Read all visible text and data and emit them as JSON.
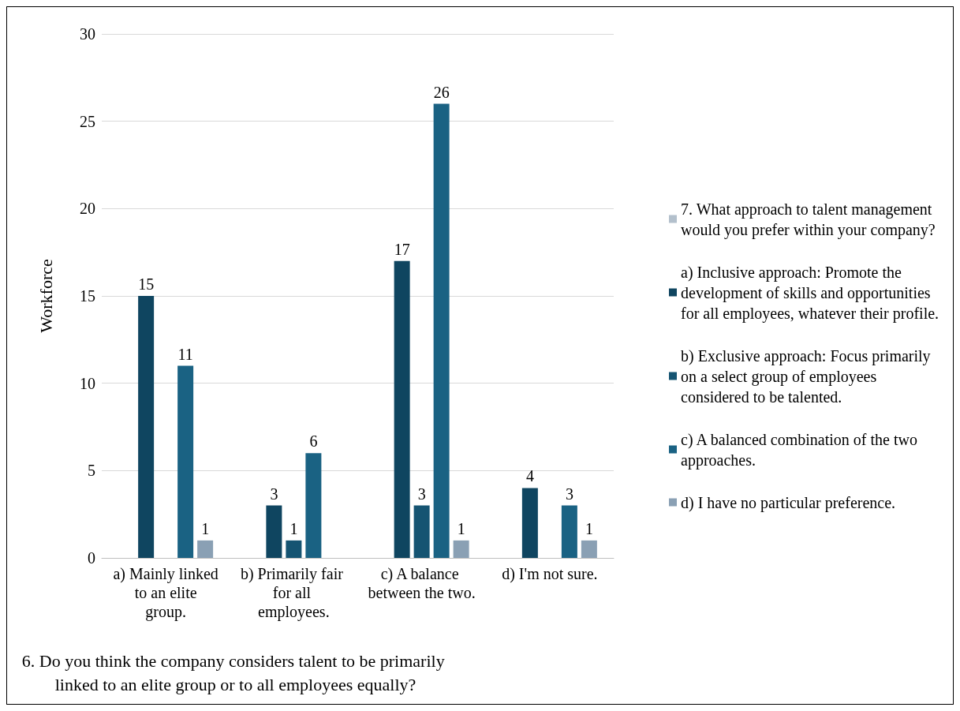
{
  "chart_data": {
    "type": "bar",
    "xlabel": "6. Do you think the company considers talent to be primarily linked to an elite group or to all employees equally?",
    "ylabel": "Workforce",
    "categories": [
      "a) Mainly linked to an elite group.",
      "b) Primarily fair for all employees.",
      "c) A balance between the two.",
      "d) I'm not sure."
    ],
    "series": [
      {
        "name": "7. What approach to talent management would you prefer within your company?",
        "color": "#b3c0cc",
        "values": [
          null,
          null,
          null,
          null
        ]
      },
      {
        "name": "a) Inclusive approach: Promote the development of skills and opportunities for all employees, whatever their profile.",
        "color": "#0f4560",
        "values": [
          15,
          3,
          17,
          4
        ]
      },
      {
        "name": "b) Exclusive approach: Focus primarily on a select group of employees considered to be talented.",
        "color": "#155472",
        "values": [
          null,
          1,
          3,
          null
        ]
      },
      {
        "name": "c) A balanced combination of the two approaches.",
        "color": "#1a6283",
        "values": [
          11,
          6,
          26,
          3
        ]
      },
      {
        "name": "d) I have no particular preference.",
        "color": "#8aa0b4",
        "values": [
          1,
          null,
          1,
          1
        ]
      }
    ],
    "ylim": [
      0,
      30
    ],
    "yticks": [
      0,
      5,
      10,
      15,
      20,
      25,
      30
    ],
    "grid": "y",
    "legend": "right",
    "data_labels": true
  }
}
